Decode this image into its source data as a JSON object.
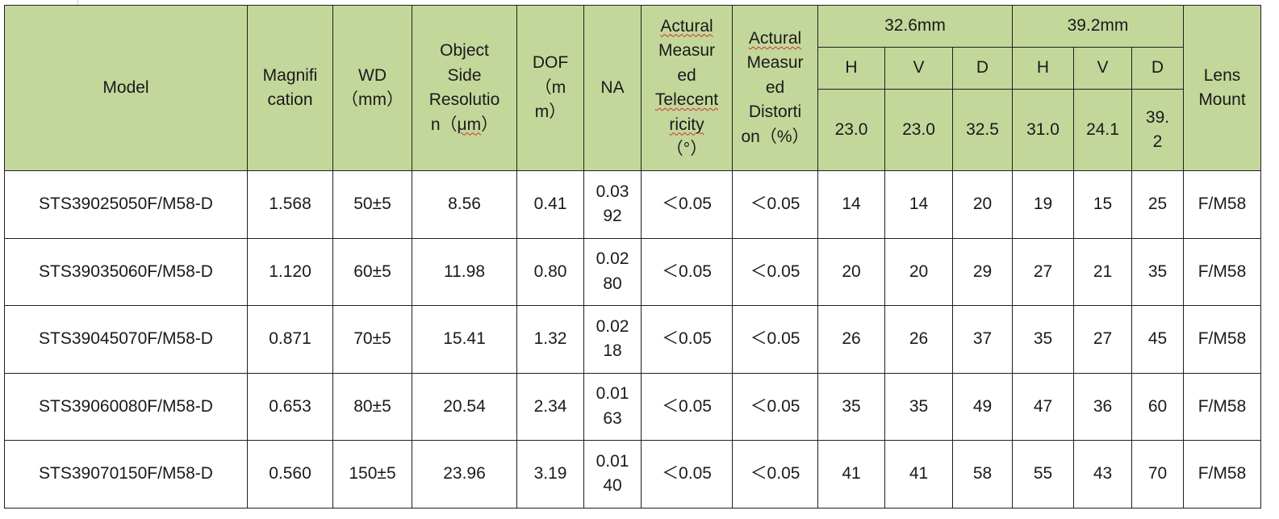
{
  "headers": {
    "model": "Model",
    "magnification": [
      "Magnifi",
      "cation"
    ],
    "wd": [
      "WD",
      "（mm）"
    ],
    "resolution": [
      "Object",
      "Side",
      "Resolutio",
      "n（",
      "μm",
      "）"
    ],
    "dof": [
      "DOF",
      "（m",
      "m）"
    ],
    "na": "NA",
    "telecentricity": [
      "Actural",
      "Measur",
      "ed",
      "Telecent",
      "ricity",
      "（°）"
    ],
    "distortion": [
      "Actural",
      "Measur",
      "ed",
      "Distorti",
      "on（%）"
    ],
    "group_a": "32.6mm",
    "group_b": "39.2mm",
    "sub_h": "H",
    "sub_v": "V",
    "sub_d": "D",
    "a_h": "23.0",
    "a_v": "23.0",
    "a_d": "32.5",
    "b_h": "31.0",
    "b_v": "24.1",
    "b_d": [
      "39.",
      "2"
    ],
    "lens_mount": [
      "Lens",
      "Mount"
    ]
  },
  "rows": [
    {
      "model": "STS39025050F/M58-D",
      "mag": "1.568",
      "wd": "50±5",
      "res": "8.56",
      "dof": "0.41",
      "na": [
        "0.03",
        "92"
      ],
      "tele": "＜0.05",
      "dist": "＜0.05",
      "ah": "14",
      "av": "14",
      "ad": "20",
      "bh": "19",
      "bv": "15",
      "bd": "25",
      "mount": "F/M58"
    },
    {
      "model": "STS39035060F/M58-D",
      "mag": "1.120",
      "wd": "60±5",
      "res": "11.98",
      "dof": "0.80",
      "na": [
        "0.02",
        "80"
      ],
      "tele": "＜0.05",
      "dist": "＜0.05",
      "ah": "20",
      "av": "20",
      "ad": "29",
      "bh": "27",
      "bv": "21",
      "bd": "35",
      "mount": "F/M58"
    },
    {
      "model": "STS39045070F/M58-D",
      "mag": "0.871",
      "wd": "70±5",
      "res": "15.41",
      "dof": "1.32",
      "na": [
        "0.02",
        "18"
      ],
      "tele": "＜0.05",
      "dist": "＜0.05",
      "ah": "26",
      "av": "26",
      "ad": "37",
      "bh": "35",
      "bv": "27",
      "bd": "45",
      "mount": "F/M58"
    },
    {
      "model": "STS39060080F/M58-D",
      "mag": "0.653",
      "wd": "80±5",
      "res": "20.54",
      "dof": "2.34",
      "na": [
        "0.01",
        "63"
      ],
      "tele": "＜0.05",
      "dist": "＜0.05",
      "ah": "35",
      "av": "35",
      "ad": "49",
      "bh": "47",
      "bv": "36",
      "bd": "60",
      "mount": "F/M58"
    },
    {
      "model": "STS39070150F/M58-D",
      "mag": "0.560",
      "wd": "150±5",
      "res": "23.96",
      "dof": "3.19",
      "na": [
        "0.01",
        "40"
      ],
      "tele": "＜0.05",
      "dist": "＜0.05",
      "ah": "41",
      "av": "41",
      "ad": "58",
      "bh": "55",
      "bv": "43",
      "bd": "70",
      "mount": "F/M58"
    }
  ]
}
